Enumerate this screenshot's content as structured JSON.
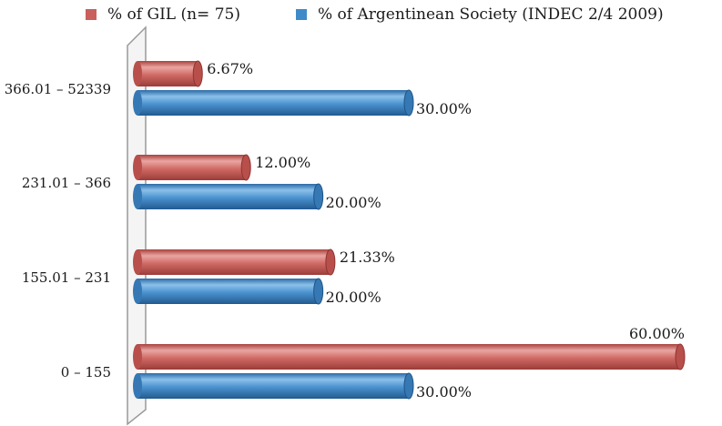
{
  "chart_data": {
    "type": "bar",
    "orientation": "horizontal",
    "style": "3d-cylinder",
    "categories": [
      "0 – 155",
      "155.01 – 231",
      "231.01 – 366",
      "366.01 – 52339"
    ],
    "series": [
      {
        "name": "% of GIL (n= 75)",
        "color": "#c9605c",
        "values": [
          60.0,
          21.33,
          12.0,
          6.67
        ],
        "labels": [
          "60.00%",
          "21.33%",
          "12.00%",
          "6.67%"
        ]
      },
      {
        "name": "% of Argentinean Society (INDEC 2/4 2009)",
        "color": "#3f8ac9",
        "values": [
          30.0,
          20.0,
          20.0,
          30.0
        ],
        "labels": [
          "30.00%",
          "20.00%",
          "20.00%",
          "30.00%"
        ]
      }
    ],
    "xlim": [
      0,
      60
    ],
    "legend": "top",
    "grid": false
  }
}
